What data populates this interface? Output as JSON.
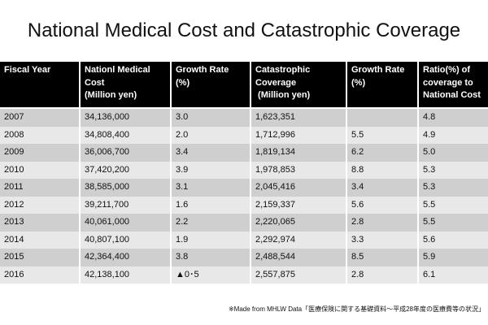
{
  "title": "National Medical Cost and Catastrophic Coverage",
  "table": {
    "headers": [
      [
        "Fiscal Year"
      ],
      [
        "Nationl Medical",
        "Cost",
        "(Million yen)"
      ],
      [
        "Growth Rate",
        "(%)"
      ],
      [
        "Catastrophic",
        "Coverage",
        " (Million yen)"
      ],
      [
        "Growth Rate",
        "(%)"
      ],
      [
        "Ratio(%) of",
        "coverage to",
        "National Cost"
      ]
    ],
    "rows": [
      [
        "2007",
        "34,136,000",
        "3.0",
        "1,623,351",
        "",
        "4.8"
      ],
      [
        "2008",
        "34,808,400",
        "2.0",
        "1,712,996",
        "5.5",
        "4.9"
      ],
      [
        "2009",
        "36,006,700",
        "3.4",
        "1,819,134",
        "6.2",
        "5.0"
      ],
      [
        "2010",
        "37,420,200",
        "3.9",
        "1,978,853",
        "8.8",
        "5.3"
      ],
      [
        "2011",
        "38,585,000",
        "3.1",
        "2,045,416",
        "3.4",
        "5.3"
      ],
      [
        "2012",
        "39,211,700",
        "1.6",
        "2,159,337",
        "5.6",
        "5.5"
      ],
      [
        "2013",
        "40,061,000",
        "2.2",
        "2,220,065",
        "2.8",
        "5.5"
      ],
      [
        "2014",
        "40,807,100",
        "1.9",
        "2,292,974",
        "3.3",
        "5.6"
      ],
      [
        "2015",
        "42,364,400",
        "3.8",
        "2,488,544",
        "8.5",
        "5.9"
      ],
      [
        "2016",
        "42,138,100",
        "▲0･5",
        "2,557,875",
        "2.8",
        "6.1"
      ]
    ]
  },
  "note": "※Made from MHLW Data「医療保険に関する基礎資料～平成28年度の医療費等の状況」",
  "colors": {
    "header_bg": "#000000",
    "row_odd": "#cfcfcf",
    "row_even": "#e8e8e8"
  }
}
